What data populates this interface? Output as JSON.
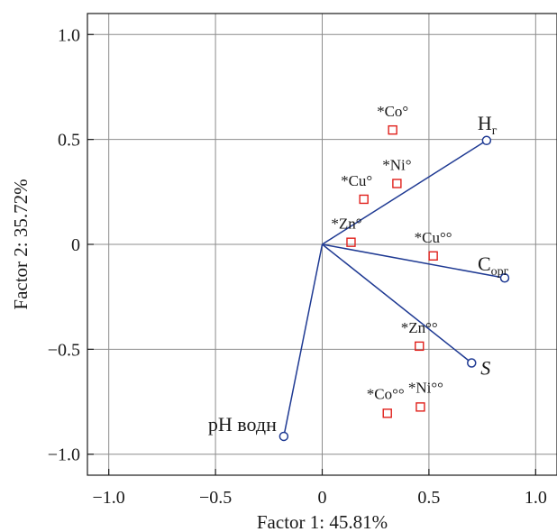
{
  "chart_data": {
    "type": "scatter",
    "title": "",
    "xlabel": "Factor 1: 45.81%",
    "ylabel": "Factor 2: 35.72%",
    "xlim": [
      -1.1,
      1.1
    ],
    "ylim": [
      -1.1,
      1.1
    ],
    "x_ticks": [
      -1.0,
      -0.5,
      0,
      0.5,
      1.0
    ],
    "x_tick_labels": [
      "−1.0",
      "−0.5",
      "0",
      "0.5",
      "1.0"
    ],
    "y_ticks": [
      1.0,
      0.5,
      0,
      -0.5,
      -1.0
    ],
    "y_tick_labels": [
      "1.0",
      "0.5",
      "0",
      "−0.5",
      "−1.0"
    ],
    "grid": true,
    "vectors_color": "#1f3a93",
    "points_color": "#e0201b",
    "vectors": [
      {
        "name": "H",
        "sub": "г",
        "italic": false,
        "x": 0.77,
        "y": 0.495
      },
      {
        "name": "C",
        "sub": "орг",
        "italic": false,
        "x": 0.855,
        "y": -0.16
      },
      {
        "name": "S",
        "sub": "",
        "italic": true,
        "x": 0.7,
        "y": -0.565
      },
      {
        "name": "pH водн",
        "sub": "",
        "italic": false,
        "x": -0.18,
        "y": -0.915
      }
    ],
    "points": [
      {
        "label": "*Co°",
        "x": 0.33,
        "y": 0.545
      },
      {
        "label": "*Ni°",
        "x": 0.35,
        "y": 0.29
      },
      {
        "label": "*Cu°",
        "x": 0.195,
        "y": 0.215
      },
      {
        "label": "*Zn°",
        "x": 0.135,
        "y": 0.01
      },
      {
        "label": "*Cu°°",
        "x": 0.52,
        "y": -0.055
      },
      {
        "label": "*Zn°°",
        "x": 0.455,
        "y": -0.485
      },
      {
        "label": "*Ni°°",
        "x": 0.46,
        "y": -0.775
      },
      {
        "label": "*Co°°",
        "x": 0.305,
        "y": -0.805
      }
    ]
  }
}
